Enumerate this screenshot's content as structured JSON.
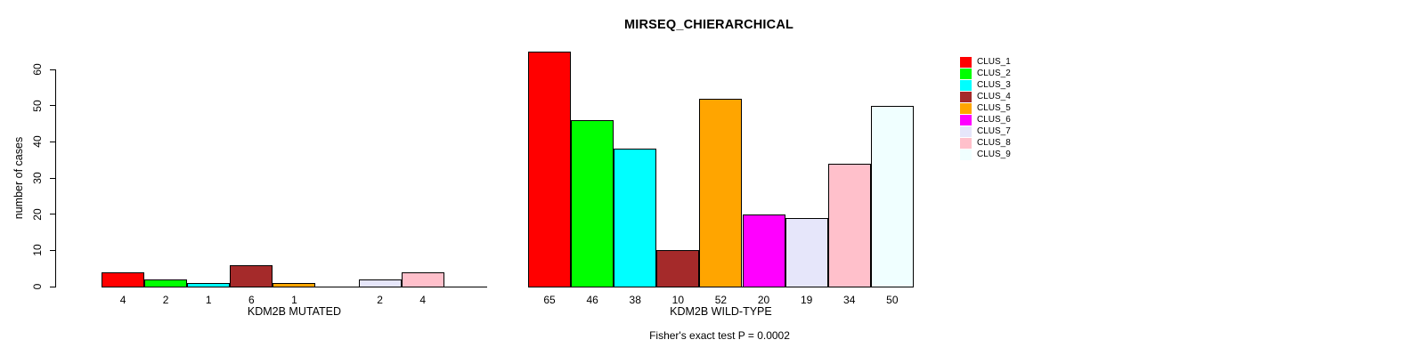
{
  "figure": {
    "title": "MIRSEQ_CHIERARCHICAL",
    "caption": "Fisher's exact test P = 0.0002"
  },
  "axis": {
    "ylabel": "number of cases",
    "yticks": [
      "0",
      "10",
      "20",
      "30",
      "40",
      "50",
      "60"
    ],
    "ylim": [
      0,
      60
    ]
  },
  "legend": {
    "items": [
      {
        "label": "CLUS_1",
        "color": "#FF0000"
      },
      {
        "label": "CLUS_2",
        "color": "#00FF00"
      },
      {
        "label": "CLUS_3",
        "color": "#00FFFF"
      },
      {
        "label": "CLUS_4",
        "color": "#A52A2A"
      },
      {
        "label": "CLUS_5",
        "color": "#FFA500"
      },
      {
        "label": "CLUS_6",
        "color": "#FF00FF"
      },
      {
        "label": "CLUS_7",
        "color": "#E6E6FA"
      },
      {
        "label": "CLUS_8",
        "color": "#FFC0CB"
      },
      {
        "label": "CLUS_9",
        "color": "#F0FFFF"
      }
    ]
  },
  "chart_data": [
    {
      "type": "bar",
      "title": "MIRSEQ_CHIERARCHICAL",
      "group_label": "KDM2B MUTATED",
      "categories": [
        "CLUS_1",
        "CLUS_2",
        "CLUS_3",
        "CLUS_4",
        "CLUS_5",
        "CLUS_6",
        "CLUS_7",
        "CLUS_8",
        "CLUS_9"
      ],
      "values": [
        4,
        2,
        1,
        6,
        1,
        0,
        2,
        4,
        0
      ],
      "bar_labels": [
        "4",
        "2",
        "1",
        "6",
        "1",
        "",
        "2",
        "4",
        ""
      ],
      "colors": [
        "#FF0000",
        "#00FF00",
        "#00FFFF",
        "#A52A2A",
        "#FFA500",
        "#FF00FF",
        "#E6E6FA",
        "#FFC0CB",
        "#F0FFFF"
      ],
      "ylabel": "number of cases",
      "ylim": [
        0,
        60
      ],
      "grid": false,
      "legend_position": "right-outside"
    },
    {
      "type": "bar",
      "title": "MIRSEQ_CHIERARCHICAL",
      "group_label": "KDM2B WILD-TYPE",
      "categories": [
        "CLUS_1",
        "CLUS_2",
        "CLUS_3",
        "CLUS_4",
        "CLUS_5",
        "CLUS_6",
        "CLUS_7",
        "CLUS_8",
        "CLUS_9"
      ],
      "values": [
        65,
        46,
        38,
        10,
        52,
        20,
        19,
        34,
        50
      ],
      "bar_labels": [
        "65",
        "46",
        "38",
        "10",
        "52",
        "20",
        "19",
        "34",
        "50"
      ],
      "colors": [
        "#FF0000",
        "#00FF00",
        "#00FFFF",
        "#A52A2A",
        "#FFA500",
        "#FF00FF",
        "#E6E6FA",
        "#FFC0CB",
        "#F0FFFF"
      ],
      "ylabel": "number of cases",
      "ylim": [
        0,
        60
      ],
      "grid": false,
      "legend_position": "right-outside"
    }
  ]
}
